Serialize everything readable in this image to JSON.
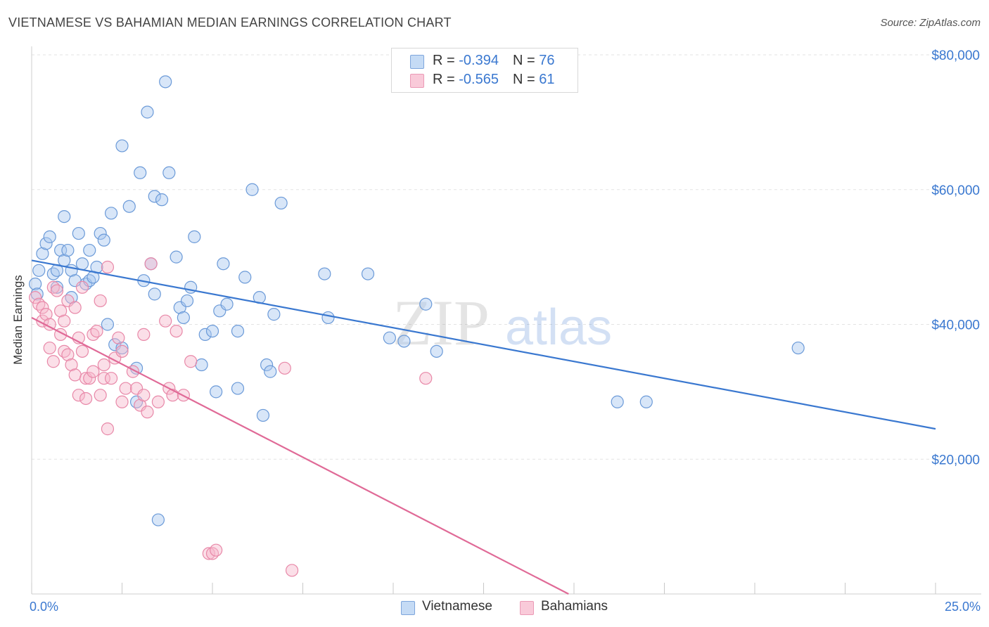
{
  "title": "VIETNAMESE VS BAHAMIAN MEDIAN EARNINGS CORRELATION CHART",
  "source": "Source: ZipAtlas.com",
  "watermark": {
    "zip": "ZIP",
    "atlas": "atlas"
  },
  "legend_top": [
    {
      "r_label": "R = ",
      "r_value": "-0.394",
      "n_label": "N = ",
      "n_value": "76"
    },
    {
      "r_label": "R = ",
      "r_value": "-0.565",
      "n_label": "N = ",
      "n_value": "61"
    }
  ],
  "colors": {
    "vietnamese_fill": "#a9c8ef",
    "vietnamese_stroke": "#6b9ad8",
    "vietnamese_line": "#3a78d0",
    "bahamian_fill": "#f6b9cc",
    "bahamian_stroke": "#e888a8",
    "bahamian_line": "#e06a97",
    "axis_text": "#3a78d0",
    "grid": "#e3e3e3"
  },
  "chart_data": {
    "type": "scatter",
    "title": "VIETNAMESE VS BAHAMIAN MEDIAN EARNINGS CORRELATION CHART",
    "xlabel": "",
    "ylabel": "Median Earnings",
    "xlim": [
      0,
      25
    ],
    "ylim": [
      0,
      80000
    ],
    "x_tick_labels": [
      "0.0%",
      "25.0%"
    ],
    "y_ticks": [
      20000,
      40000,
      60000,
      80000
    ],
    "y_tick_labels": [
      "$20,000",
      "$40,000",
      "$60,000",
      "$80,000"
    ],
    "grid": true,
    "legend_position": "bottom",
    "series": [
      {
        "name": "Vietnamese",
        "r": -0.394,
        "n": 76,
        "trend": {
          "x": [
            0,
            25
          ],
          "y": [
            49500,
            24500
          ]
        },
        "points": [
          [
            0.1,
            46000
          ],
          [
            0.2,
            48000
          ],
          [
            0.3,
            50500
          ],
          [
            0.4,
            52000
          ],
          [
            0.5,
            53000
          ],
          [
            0.6,
            47500
          ],
          [
            0.7,
            48000
          ],
          [
            0.7,
            45500
          ],
          [
            0.8,
            51000
          ],
          [
            0.9,
            49500
          ],
          [
            0.9,
            56000
          ],
          [
            1.0,
            51000
          ],
          [
            1.1,
            48000
          ],
          [
            1.1,
            44000
          ],
          [
            1.2,
            46500
          ],
          [
            1.3,
            53500
          ],
          [
            1.4,
            49000
          ],
          [
            1.5,
            46000
          ],
          [
            1.6,
            46500
          ],
          [
            1.6,
            51000
          ],
          [
            1.7,
            47000
          ],
          [
            1.8,
            48500
          ],
          [
            1.9,
            53500
          ],
          [
            2.0,
            52500
          ],
          [
            2.1,
            40000
          ],
          [
            2.2,
            56500
          ],
          [
            2.3,
            37000
          ],
          [
            2.5,
            36500
          ],
          [
            2.5,
            66500
          ],
          [
            2.7,
            57500
          ],
          [
            2.9,
            28500
          ],
          [
            2.9,
            33500
          ],
          [
            3.0,
            62500
          ],
          [
            3.1,
            46500
          ],
          [
            3.2,
            71500
          ],
          [
            3.3,
            49000
          ],
          [
            3.4,
            44500
          ],
          [
            3.4,
            59000
          ],
          [
            3.5,
            11000
          ],
          [
            3.6,
            58500
          ],
          [
            3.7,
            76000
          ],
          [
            3.8,
            62500
          ],
          [
            4.0,
            50000
          ],
          [
            4.1,
            42500
          ],
          [
            4.2,
            41000
          ],
          [
            4.3,
            43500
          ],
          [
            4.4,
            45500
          ],
          [
            4.5,
            53000
          ],
          [
            4.7,
            34000
          ],
          [
            4.8,
            38500
          ],
          [
            5.0,
            39000
          ],
          [
            5.1,
            30000
          ],
          [
            5.2,
            42000
          ],
          [
            5.3,
            49000
          ],
          [
            5.4,
            43000
          ],
          [
            5.7,
            30500
          ],
          [
            5.7,
            39000
          ],
          [
            5.9,
            47000
          ],
          [
            6.1,
            60000
          ],
          [
            6.3,
            44000
          ],
          [
            6.4,
            26500
          ],
          [
            6.5,
            34000
          ],
          [
            6.6,
            33000
          ],
          [
            6.7,
            41500
          ],
          [
            6.9,
            58000
          ],
          [
            8.1,
            47500
          ],
          [
            8.2,
            41000
          ],
          [
            9.3,
            47500
          ],
          [
            9.9,
            38000
          ],
          [
            10.3,
            37500
          ],
          [
            10.9,
            43000
          ],
          [
            11.2,
            36000
          ],
          [
            16.2,
            28500
          ],
          [
            17.0,
            28500
          ],
          [
            21.2,
            36500
          ],
          [
            0.15,
            44500
          ]
        ]
      },
      {
        "name": "Bahamians",
        "r": -0.565,
        "n": 61,
        "trend": {
          "x": [
            0,
            14.85
          ],
          "y": [
            41000,
            0
          ]
        },
        "points": [
          [
            0.1,
            44000
          ],
          [
            0.2,
            43000
          ],
          [
            0.3,
            42500
          ],
          [
            0.3,
            40500
          ],
          [
            0.4,
            41500
          ],
          [
            0.5,
            36500
          ],
          [
            0.5,
            40000
          ],
          [
            0.6,
            34500
          ],
          [
            0.6,
            45500
          ],
          [
            0.7,
            45000
          ],
          [
            0.8,
            42000
          ],
          [
            0.8,
            38500
          ],
          [
            0.9,
            36000
          ],
          [
            0.9,
            40500
          ],
          [
            1.0,
            43500
          ],
          [
            1.0,
            35500
          ],
          [
            1.1,
            34000
          ],
          [
            1.2,
            32500
          ],
          [
            1.2,
            42500
          ],
          [
            1.3,
            29500
          ],
          [
            1.3,
            38000
          ],
          [
            1.4,
            36000
          ],
          [
            1.4,
            45500
          ],
          [
            1.5,
            29000
          ],
          [
            1.5,
            32000
          ],
          [
            1.6,
            32000
          ],
          [
            1.7,
            38500
          ],
          [
            1.7,
            33000
          ],
          [
            1.8,
            39000
          ],
          [
            1.9,
            29500
          ],
          [
            1.9,
            43500
          ],
          [
            2.0,
            32000
          ],
          [
            2.0,
            34000
          ],
          [
            2.1,
            24500
          ],
          [
            2.1,
            48500
          ],
          [
            2.2,
            32000
          ],
          [
            2.3,
            35000
          ],
          [
            2.4,
            38000
          ],
          [
            2.5,
            36000
          ],
          [
            2.5,
            28500
          ],
          [
            2.6,
            30500
          ],
          [
            2.8,
            33000
          ],
          [
            2.9,
            30500
          ],
          [
            3.0,
            28000
          ],
          [
            3.1,
            29500
          ],
          [
            3.1,
            38500
          ],
          [
            3.2,
            27000
          ],
          [
            3.3,
            49000
          ],
          [
            3.5,
            28500
          ],
          [
            3.7,
            40500
          ],
          [
            3.8,
            30500
          ],
          [
            3.9,
            29500
          ],
          [
            4.0,
            39000
          ],
          [
            4.2,
            29500
          ],
          [
            4.4,
            34500
          ],
          [
            4.9,
            6000
          ],
          [
            5.0,
            6000
          ],
          [
            5.1,
            6500
          ],
          [
            7.0,
            33500
          ],
          [
            7.2,
            3500
          ],
          [
            10.9,
            32000
          ]
        ]
      }
    ]
  },
  "legend_bottom": [
    "Vietnamese",
    "Bahamians"
  ]
}
